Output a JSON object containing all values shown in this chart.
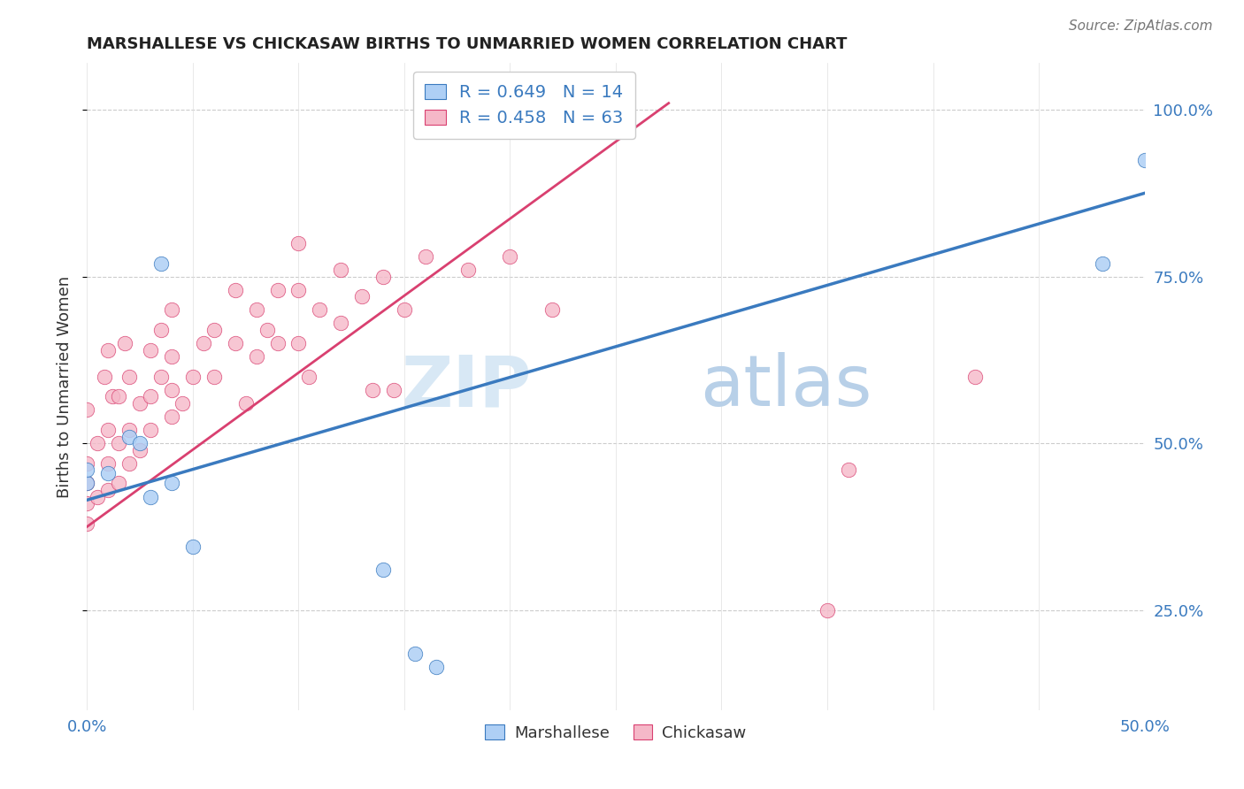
{
  "title": "MARSHALLESE VS CHICKASAW BIRTHS TO UNMARRIED WOMEN CORRELATION CHART",
  "source": "Source: ZipAtlas.com",
  "ylabel": "Births to Unmarried Women",
  "xlim": [
    0.0,
    0.5
  ],
  "ylim": [
    0.1,
    1.07
  ],
  "marshallese_R": 0.649,
  "marshallese_N": 14,
  "chickasaw_R": 0.458,
  "chickasaw_N": 63,
  "marshallese_color": "#aecff5",
  "chickasaw_color": "#f5b8c8",
  "trend_marshallese_color": "#3a7abf",
  "trend_chickasaw_color": "#d94070",
  "watermark_zip": "ZIP",
  "watermark_atlas": "atlas",
  "marsh_trend_x": [
    0.0,
    0.5
  ],
  "marsh_trend_y": [
    0.415,
    0.875
  ],
  "chick_trend_x": [
    0.0,
    0.275
  ],
  "chick_trend_y": [
    0.375,
    1.01
  ],
  "marsh_x": [
    0.0,
    0.0,
    0.01,
    0.02,
    0.025,
    0.03,
    0.035,
    0.04,
    0.05,
    0.14,
    0.155,
    0.165,
    0.48,
    0.5
  ],
  "marsh_y": [
    0.44,
    0.46,
    0.455,
    0.51,
    0.5,
    0.42,
    0.77,
    0.44,
    0.345,
    0.31,
    0.185,
    0.165,
    0.77,
    0.925
  ],
  "chick_x": [
    0.0,
    0.0,
    0.0,
    0.0,
    0.0,
    0.005,
    0.005,
    0.008,
    0.01,
    0.01,
    0.01,
    0.01,
    0.012,
    0.015,
    0.015,
    0.015,
    0.018,
    0.02,
    0.02,
    0.02,
    0.025,
    0.025,
    0.03,
    0.03,
    0.03,
    0.035,
    0.035,
    0.04,
    0.04,
    0.04,
    0.04,
    0.045,
    0.05,
    0.055,
    0.06,
    0.06,
    0.07,
    0.07,
    0.075,
    0.08,
    0.08,
    0.085,
    0.09,
    0.09,
    0.1,
    0.1,
    0.1,
    0.105,
    0.11,
    0.12,
    0.12,
    0.13,
    0.135,
    0.14,
    0.145,
    0.15,
    0.16,
    0.18,
    0.2,
    0.22,
    0.35,
    0.36,
    0.42
  ],
  "chick_y": [
    0.38,
    0.41,
    0.44,
    0.47,
    0.55,
    0.42,
    0.5,
    0.6,
    0.43,
    0.47,
    0.52,
    0.64,
    0.57,
    0.44,
    0.5,
    0.57,
    0.65,
    0.47,
    0.52,
    0.6,
    0.49,
    0.56,
    0.52,
    0.57,
    0.64,
    0.6,
    0.67,
    0.54,
    0.58,
    0.63,
    0.7,
    0.56,
    0.6,
    0.65,
    0.6,
    0.67,
    0.65,
    0.73,
    0.56,
    0.63,
    0.7,
    0.67,
    0.65,
    0.73,
    0.65,
    0.73,
    0.8,
    0.6,
    0.7,
    0.68,
    0.76,
    0.72,
    0.58,
    0.75,
    0.58,
    0.7,
    0.78,
    0.76,
    0.78,
    0.7,
    0.25,
    0.46,
    0.6
  ]
}
